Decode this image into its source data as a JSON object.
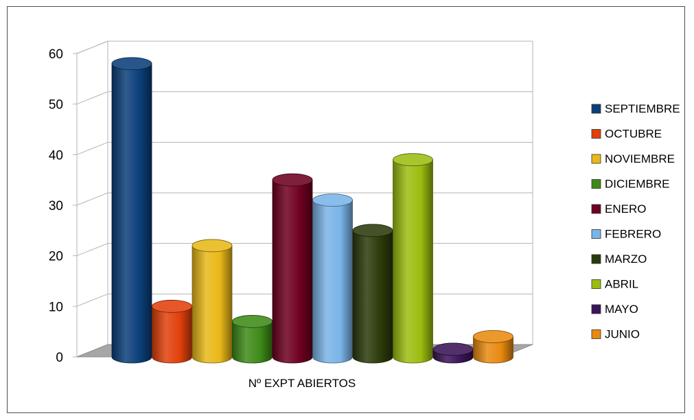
{
  "chart_data": {
    "type": "bar",
    "style": "3d-cylinder",
    "categories": [
      "Nº EXPT ABIERTOS"
    ],
    "xlabel": "Nº EXPT ABIERTOS",
    "ylabel": "",
    "ylim": [
      0,
      60
    ],
    "yticks": [
      0,
      10,
      20,
      30,
      40,
      50,
      60
    ],
    "grid": true,
    "legend_position": "right",
    "series": [
      {
        "name": "SEPTIEMBRE",
        "values": [
          58
        ],
        "color": "#0b3f7a"
      },
      {
        "name": "OCTUBRE",
        "values": [
          10
        ],
        "color": "#e1400c"
      },
      {
        "name": "NOVIEMBRE",
        "values": [
          22
        ],
        "color": "#e8b818"
      },
      {
        "name": "DICIEMBRE",
        "values": [
          7
        ],
        "color": "#3e8a18"
      },
      {
        "name": "ENERO",
        "values": [
          35
        ],
        "color": "#6e0020"
      },
      {
        "name": "FEBRERO",
        "values": [
          31
        ],
        "color": "#7ab4e8"
      },
      {
        "name": "MARZO",
        "values": [
          25
        ],
        "color": "#2b3a0a"
      },
      {
        "name": "ABRIL",
        "values": [
          39
        ],
        "color": "#9cbd10"
      },
      {
        "name": "MAYO",
        "values": [
          1.5
        ],
        "color": "#3a1458"
      },
      {
        "name": "JUNIO",
        "values": [
          4
        ],
        "color": "#e88a10"
      }
    ]
  }
}
